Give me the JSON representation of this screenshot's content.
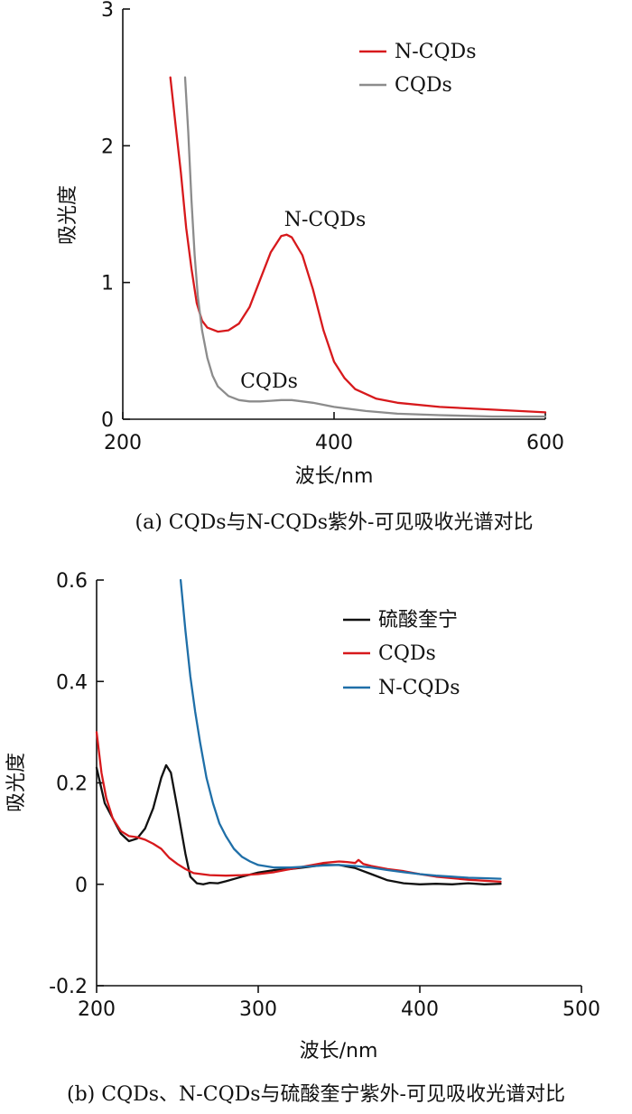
{
  "chart_data": [
    {
      "type": "line",
      "title": "",
      "xlabel": "波长/nm",
      "ylabel": "吸光度",
      "xlim": [
        200,
        600
      ],
      "ylim": [
        0,
        3
      ],
      "xticks": [
        "200",
        "400",
        "600"
      ],
      "yticks": [
        "0",
        "1",
        "2",
        "3"
      ],
      "legend_position": "top-right",
      "caption": "(a) CQDs与N-CQDs紫外-可见吸收光谱对比",
      "annotations": [
        "N-CQDs",
        "CQDs"
      ],
      "series": [
        {
          "name": "N-CQDs",
          "color": "#d7191c",
          "x": [
            245,
            250,
            255,
            260,
            265,
            270,
            275,
            280,
            290,
            300,
            310,
            320,
            330,
            340,
            350,
            355,
            360,
            370,
            380,
            390,
            400,
            410,
            420,
            440,
            460,
            500,
            550,
            600
          ],
          "y": [
            2.5,
            2.15,
            1.8,
            1.4,
            1.1,
            0.85,
            0.72,
            0.67,
            0.64,
            0.65,
            0.7,
            0.82,
            1.02,
            1.22,
            1.34,
            1.35,
            1.33,
            1.2,
            0.95,
            0.65,
            0.42,
            0.3,
            0.22,
            0.15,
            0.12,
            0.09,
            0.07,
            0.05
          ]
        },
        {
          "name": "CQDs",
          "color": "#8c8c8c",
          "x": [
            259,
            262,
            265,
            268,
            271,
            275,
            280,
            285,
            290,
            300,
            310,
            320,
            330,
            340,
            350,
            360,
            370,
            380,
            400,
            430,
            460,
            500,
            550,
            600
          ],
          "y": [
            2.5,
            2.1,
            1.6,
            1.2,
            0.9,
            0.65,
            0.45,
            0.32,
            0.24,
            0.17,
            0.14,
            0.13,
            0.13,
            0.135,
            0.14,
            0.14,
            0.13,
            0.12,
            0.09,
            0.06,
            0.04,
            0.03,
            0.02,
            0.02
          ]
        }
      ]
    },
    {
      "type": "line",
      "title": "",
      "xlabel": "波长/nm",
      "ylabel": "吸光度",
      "xlim": [
        200,
        500
      ],
      "ylim": [
        -0.2,
        0.6
      ],
      "xticks": [
        "200",
        "300",
        "400",
        "500"
      ],
      "yticks": [
        "-0.2",
        "0",
        "0.2",
        "0.4",
        "0.6"
      ],
      "legend_position": "top-right",
      "caption": "(b) CQDs、N-CQDs与硫酸奎宁紫外-可见吸收光谱对比",
      "series": [
        {
          "name": "硫酸奎宁",
          "color": "#111111",
          "x": [
            200,
            205,
            210,
            215,
            220,
            225,
            230,
            235,
            240,
            243,
            246,
            250,
            255,
            258,
            262,
            266,
            270,
            275,
            280,
            290,
            300,
            310,
            320,
            330,
            340,
            350,
            360,
            370,
            380,
            390,
            400,
            410,
            420,
            430,
            440,
            450
          ],
          "y": [
            0.23,
            0.16,
            0.13,
            0.1,
            0.085,
            0.09,
            0.11,
            0.15,
            0.21,
            0.235,
            0.22,
            0.15,
            0.06,
            0.015,
            0.002,
            0.0,
            0.003,
            0.002,
            0.006,
            0.015,
            0.023,
            0.028,
            0.03,
            0.034,
            0.038,
            0.038,
            0.032,
            0.02,
            0.008,
            0.002,
            0.0,
            0.001,
            0.0,
            0.002,
            0.0,
            0.001
          ]
        },
        {
          "name": "CQDs",
          "color": "#d7191c",
          "x": [
            200,
            203,
            206,
            210,
            215,
            220,
            225,
            230,
            235,
            240,
            245,
            250,
            255,
            260,
            270,
            280,
            290,
            300,
            310,
            320,
            330,
            340,
            350,
            355,
            360,
            362,
            365,
            370,
            380,
            390,
            400,
            410,
            420,
            430,
            440,
            450
          ],
          "y": [
            0.3,
            0.22,
            0.17,
            0.13,
            0.105,
            0.095,
            0.093,
            0.088,
            0.08,
            0.07,
            0.052,
            0.04,
            0.03,
            0.022,
            0.018,
            0.017,
            0.018,
            0.02,
            0.024,
            0.03,
            0.036,
            0.042,
            0.045,
            0.044,
            0.042,
            0.048,
            0.04,
            0.036,
            0.03,
            0.026,
            0.02,
            0.015,
            0.012,
            0.009,
            0.007,
            0.005
          ]
        },
        {
          "name": "N-CQDs",
          "color": "#1f6fa8",
          "x": [
            252,
            255,
            258,
            261,
            264,
            268,
            272,
            276,
            280,
            285,
            290,
            295,
            300,
            310,
            320,
            330,
            340,
            350,
            360,
            370,
            380,
            390,
            400,
            410,
            420,
            430,
            440,
            450
          ],
          "y": [
            0.6,
            0.5,
            0.41,
            0.34,
            0.28,
            0.21,
            0.16,
            0.12,
            0.095,
            0.07,
            0.054,
            0.045,
            0.038,
            0.033,
            0.033,
            0.035,
            0.037,
            0.038,
            0.036,
            0.033,
            0.028,
            0.024,
            0.02,
            0.017,
            0.015,
            0.013,
            0.012,
            0.011
          ]
        }
      ]
    }
  ]
}
